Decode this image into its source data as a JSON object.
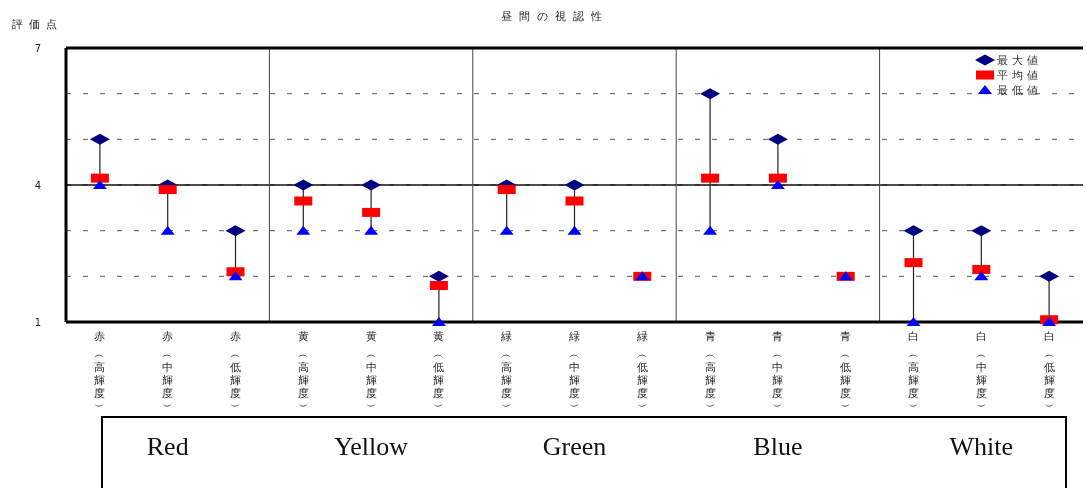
{
  "chart_data": {
    "type": "scatter",
    "title": "昼間の視認性",
    "ylabel": "評価点",
    "categories": [
      "赤︵高輝度︶",
      "赤︵中輝度︶",
      "赤︵低輝度︶",
      "黄︵高輝度︶",
      "黄︵中輝度︶",
      "黄︵低輝度︶",
      "緑︵高輝度︶",
      "緑︵中輝度︶",
      "緑︵低輝度︶",
      "青︵高輝度︶",
      "青︵中輝度︶",
      "青︵低輝度︶",
      "白︵高輝度︶",
      "白︵中輝度︶",
      "白︵低輝度︶"
    ],
    "series": [
      {
        "name": "最大値",
        "color": "#000080",
        "marker": "diamond",
        "values": [
          5,
          4,
          3,
          4,
          4,
          2,
          4,
          4,
          null,
          6,
          5,
          null,
          3,
          3,
          2
        ]
      },
      {
        "name": "平均値",
        "color": "#ff0000",
        "marker": "square",
        "values": [
          4.15,
          3.9,
          2.1,
          3.65,
          3.4,
          1.8,
          3.9,
          3.65,
          2,
          4.15,
          4.15,
          2,
          2.3,
          2.15,
          1.05
        ]
      },
      {
        "name": "最低値",
        "color": "#0000ff",
        "marker": "triangle",
        "values": [
          4,
          3,
          2,
          3,
          3,
          1,
          3,
          3,
          2,
          3,
          4,
          2,
          1,
          2,
          1
        ]
      }
    ],
    "ylim": [
      1,
      7
    ],
    "yticks": [
      1,
      {
        "value": 2,
        "label": null
      },
      {
        "value": 3,
        "label": null
      },
      4,
      {
        "value": 5,
        "label": null
      },
      {
        "value": 6,
        "label": null
      },
      7
    ],
    "grid": "y",
    "ref_lines": [
      {
        "axis": "y",
        "value": 4,
        "label": null,
        "line_style": "solid"
      }
    ],
    "legend": "top right",
    "annotations": [
      "Red",
      "Yellow",
      "Green",
      "Blue",
      "White"
    ]
  }
}
